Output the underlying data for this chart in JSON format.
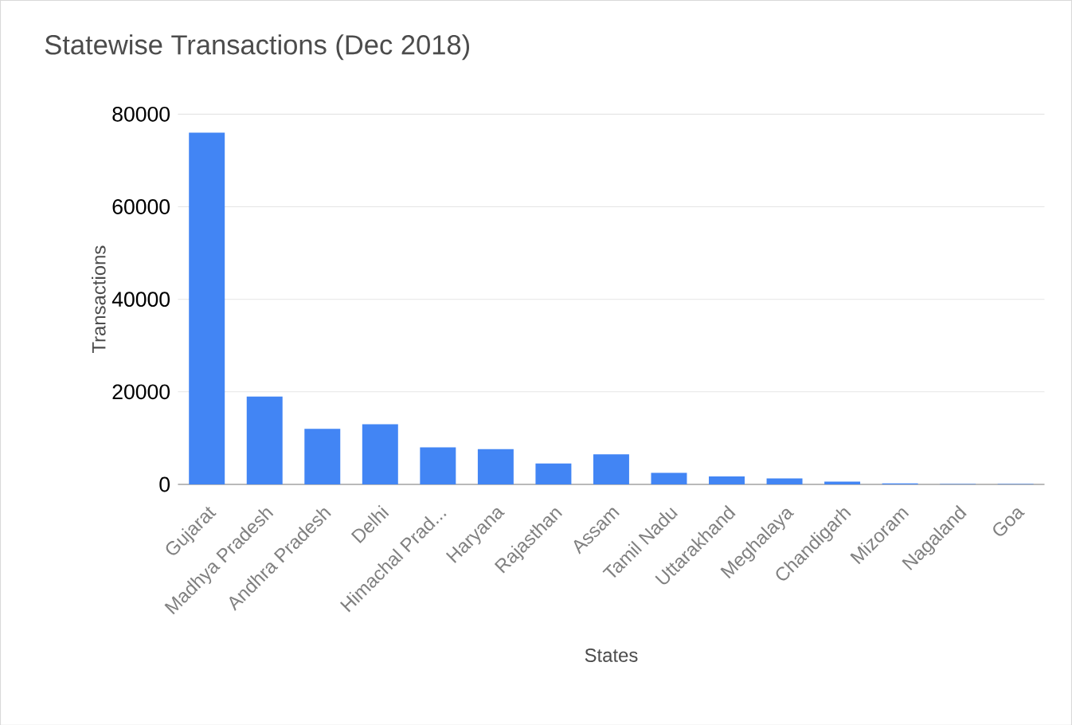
{
  "chart_data": {
    "type": "bar",
    "title": "Statewise Transactions (Dec 2018)",
    "xlabel": "States",
    "ylabel": "Transactions",
    "categories": [
      "Gujarat",
      "Madhya Pradesh",
      "Andhra Pradesh",
      "Delhi",
      "Himachal Prad...",
      "Haryana",
      "Rajasthan",
      "Assam",
      "Tamil Nadu",
      "Uttarakhand",
      "Meghalaya",
      "Chandigarh",
      "Mizoram",
      "Nagaland",
      "Goa"
    ],
    "values": [
      76000,
      19000,
      12000,
      13000,
      8000,
      7600,
      4500,
      6500,
      2500,
      1700,
      1300,
      600,
      200,
      100,
      100
    ],
    "color": "#4285f4",
    "ylim": [
      0,
      80000
    ],
    "yticks": [
      0,
      20000,
      40000,
      60000,
      80000
    ],
    "grid": "y"
  }
}
